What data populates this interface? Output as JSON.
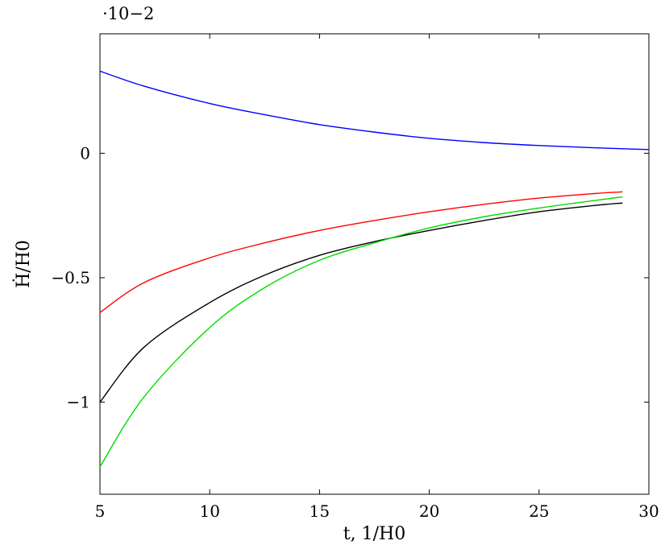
{
  "chart_data": {
    "type": "line",
    "xlabel": "t, 1/H0",
    "ylabel": "Ḣ/H0",
    "scale_note": "·10−2",
    "xlim": [
      5,
      30
    ],
    "ylim": [
      -1.37,
      0.48
    ],
    "xticks": [
      5,
      10,
      15,
      20,
      25,
      30
    ],
    "xtick_labels": [
      "5",
      "10",
      "15",
      "20",
      "25",
      "30"
    ],
    "yticks": [
      0,
      -0.5,
      -1
    ],
    "ytick_labels": [
      "0",
      "−0.5",
      "−1"
    ],
    "grid": false,
    "legend": "none",
    "series": [
      {
        "color": "#0000ff",
        "x": [
          5,
          7,
          10,
          12.5,
          15,
          17.5,
          20,
          22.5,
          25,
          27.5,
          30
        ],
        "y": [
          0.33,
          0.27,
          0.2,
          0.155,
          0.115,
          0.085,
          0.06,
          0.043,
          0.031,
          0.022,
          0.015
        ]
      },
      {
        "color": "#ff0000",
        "x": [
          5,
          7,
          10,
          12.5,
          15,
          17.5,
          20,
          22.5,
          25,
          27.5,
          28.8
        ],
        "y": [
          -0.64,
          -0.52,
          -0.42,
          -0.36,
          -0.31,
          -0.27,
          -0.235,
          -0.205,
          -0.18,
          -0.162,
          -0.155
        ]
      },
      {
        "color": "#000000",
        "x": [
          5,
          7,
          10,
          12.5,
          15,
          17.5,
          20,
          22.5,
          25,
          27.5,
          28.8
        ],
        "y": [
          -1.0,
          -0.78,
          -0.6,
          -0.49,
          -0.41,
          -0.355,
          -0.31,
          -0.27,
          -0.235,
          -0.21,
          -0.2
        ]
      },
      {
        "color": "#00dd00",
        "x": [
          5,
          7,
          10,
          12.5,
          15,
          17.5,
          20,
          22.5,
          25,
          27.5,
          28.8
        ],
        "y": [
          -1.26,
          -0.98,
          -0.7,
          -0.54,
          -0.43,
          -0.36,
          -0.3,
          -0.255,
          -0.22,
          -0.19,
          -0.175
        ]
      }
    ]
  }
}
